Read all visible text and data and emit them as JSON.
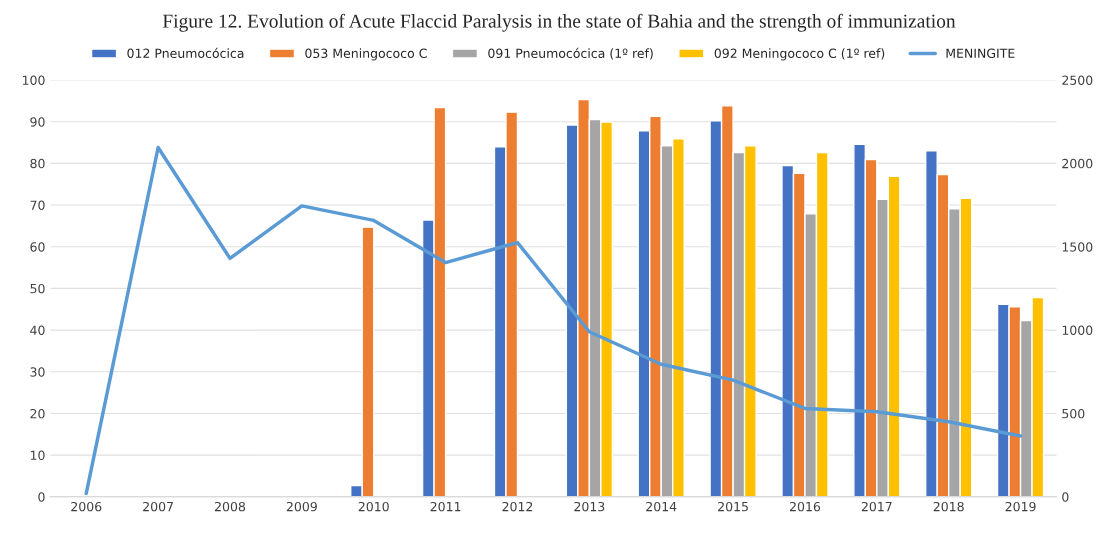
{
  "chart_data": {
    "type": "bar",
    "title": "Figure 12. Evolution of Acute Flaccid Paralysis in the state of Bahia and the strength of immunization",
    "categories": [
      "2006",
      "2007",
      "2008",
      "2009",
      "2010",
      "2011",
      "2012",
      "2013",
      "2014",
      "2015",
      "2016",
      "2017",
      "2018",
      "2019"
    ],
    "series": [
      {
        "name": "012 Pneumocócica",
        "color": "#4472c4",
        "values": [
          null,
          null,
          null,
          null,
          2.7,
          66.4,
          84,
          89.2,
          87.8,
          90.2,
          79.5,
          84.6,
          83,
          46.2
        ]
      },
      {
        "name": "053 Meningococo C",
        "color": "#ed7d31",
        "values": [
          null,
          null,
          null,
          null,
          64.7,
          93.4,
          92.3,
          95.3,
          91.3,
          93.8,
          77.6,
          80.9,
          77.3,
          45.6
        ]
      },
      {
        "name": "091 Pneumocócica (1º ref)",
        "color": "#a5a5a5",
        "values": [
          null,
          null,
          null,
          null,
          null,
          null,
          null,
          90.5,
          84.2,
          82.6,
          67.9,
          71.4,
          69.1,
          42.3
        ]
      },
      {
        "name": "092 Meningococo C (1º ref)",
        "color": "#ffc000",
        "values": [
          null,
          null,
          null,
          null,
          null,
          null,
          null,
          89.9,
          85.9,
          84.2,
          82.6,
          76.9,
          71.6,
          47.8
        ]
      },
      {
        "name": "MENINGITE",
        "color": "#5b9bd5",
        "type": "line",
        "axis": "y2",
        "values": [
          20,
          2095,
          1430,
          1745,
          1658,
          1405,
          1525,
          990,
          795,
          700,
          530,
          510,
          450,
          365
        ]
      }
    ],
    "ylim": [
      0,
      100
    ],
    "yticks": [
      0,
      10,
      20,
      30,
      40,
      50,
      60,
      70,
      80,
      90,
      100
    ],
    "y2lim": [
      0,
      2500
    ],
    "y2ticks": [
      0,
      500,
      1000,
      1500,
      2000,
      2500
    ],
    "grid": "y",
    "legend": "top"
  }
}
